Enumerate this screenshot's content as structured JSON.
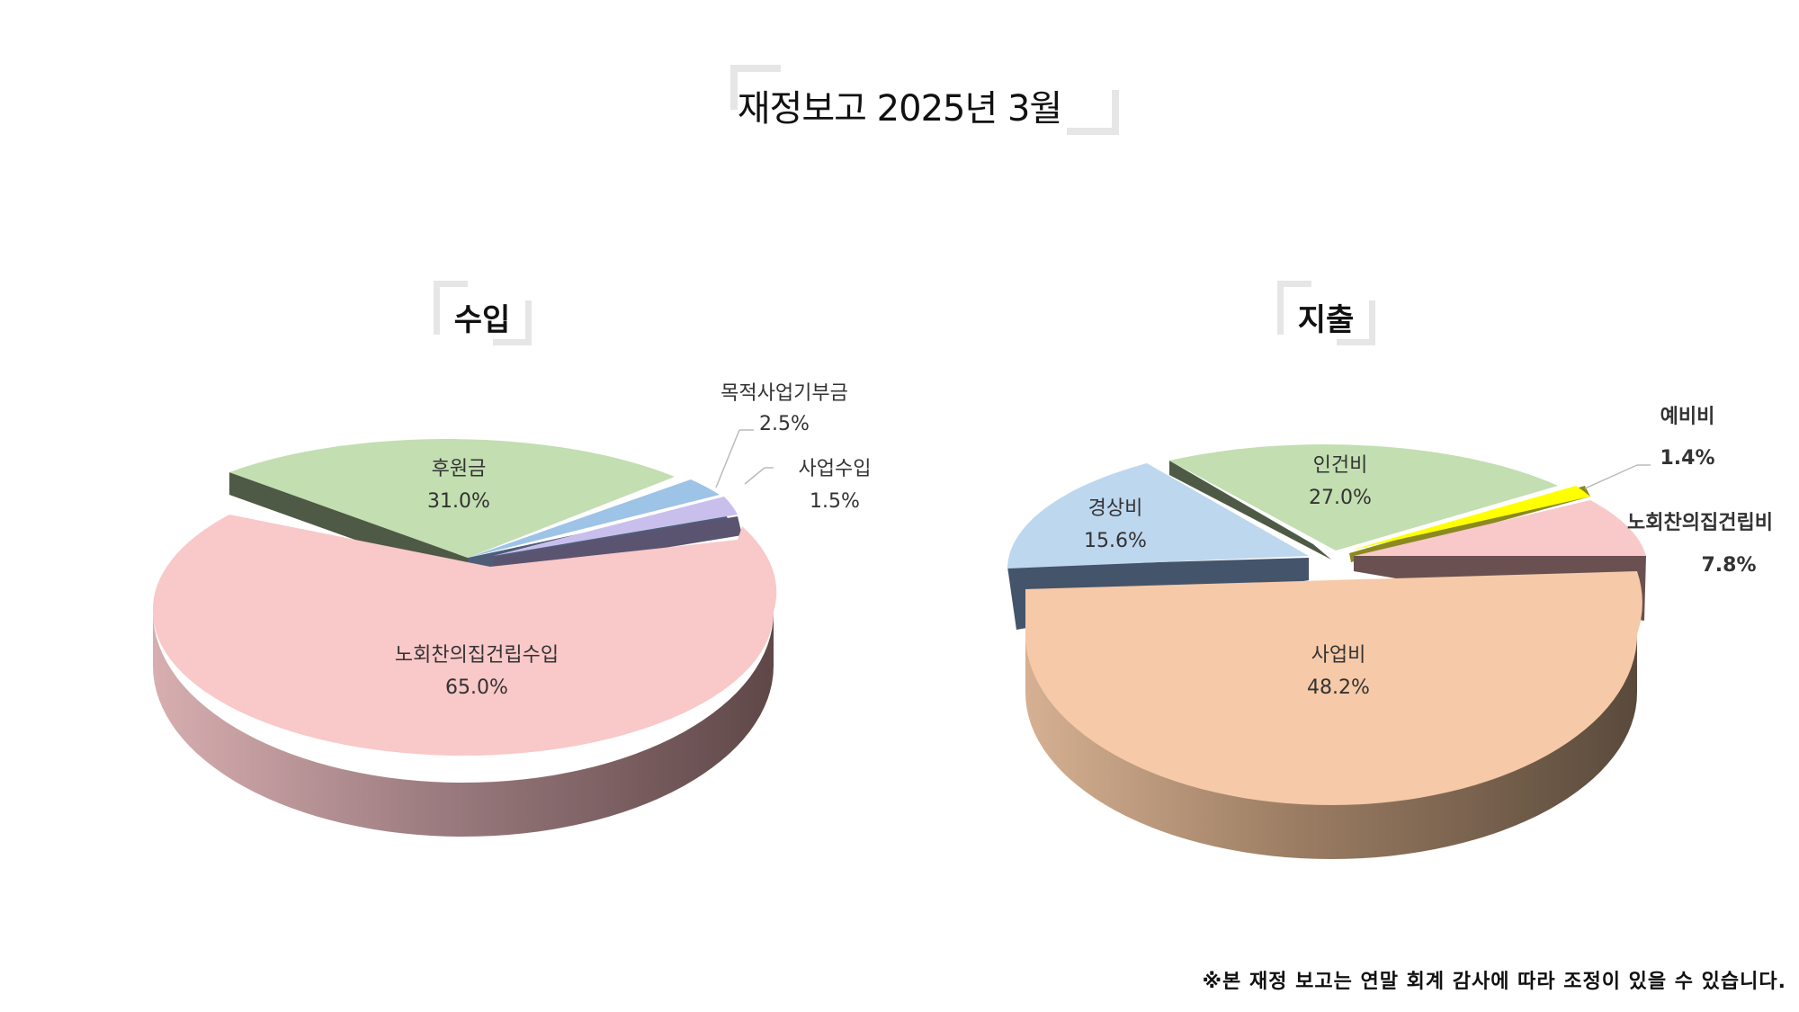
{
  "title": "재정보고 2025년 3월",
  "footer_note": "※본 재정 보고는 연말 회계 감사에 따라 조정이 있을 수 있습니다.",
  "chart_data": [
    {
      "type": "pie",
      "title": "수입",
      "slices": [
        {
          "label": "노회찬의집건립수입",
          "value_label": "65.0%",
          "value": 65.0,
          "color": "#f9c8c8",
          "side_color": "#b98f92"
        },
        {
          "label": "후원금",
          "value_label": "31.0%",
          "value": 31.0,
          "color": "#c3deb1",
          "side_color": "#4e5a45"
        },
        {
          "label": "목적사업기부금",
          "value_label": "2.5%",
          "value": 2.5,
          "color": "#9dc3e6",
          "side_color": "#44546a"
        },
        {
          "label": "사업수입",
          "value_label": "1.5%",
          "value": 1.5,
          "color": "#c9bfec",
          "side_color": "#5b5470"
        }
      ]
    },
    {
      "type": "pie",
      "title": "지출",
      "slices": [
        {
          "label": "사업비",
          "value_label": "48.2%",
          "value": 48.2,
          "color": "#f6c9a8",
          "side_color": "#a8846a"
        },
        {
          "label": "경상비",
          "value_label": "15.6%",
          "value": 15.6,
          "color": "#bdd7ee",
          "side_color": "#44546a"
        },
        {
          "label": "인건비",
          "value_label": "27.0%",
          "value": 27.0,
          "color": "#c3deb1",
          "side_color": "#4e5a45"
        },
        {
          "label": "예비비",
          "value_label": "1.4%",
          "value": 1.4,
          "color": "#ffff00",
          "side_color": "#8a8a20"
        },
        {
          "label": "노회찬의집건립비",
          "value_label": "7.8%",
          "value": 7.8,
          "color": "#f9c8c8",
          "side_color": "#6a5050"
        }
      ]
    }
  ]
}
